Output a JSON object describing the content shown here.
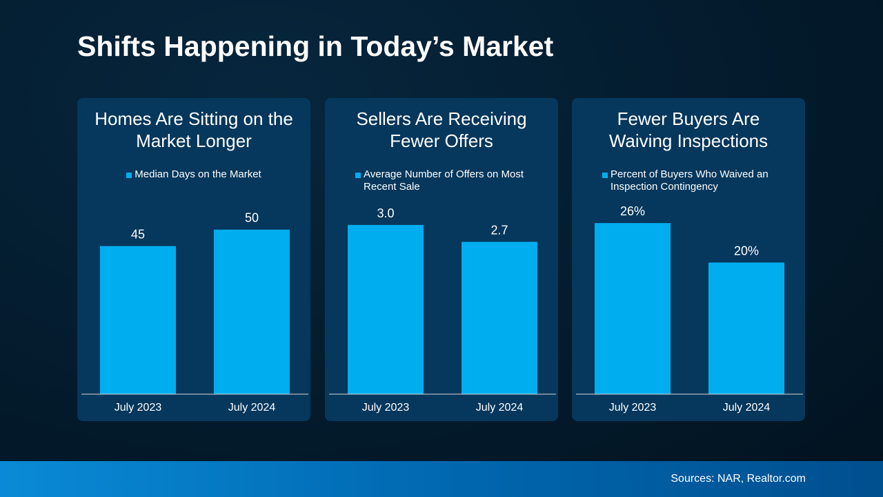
{
  "title": "Shifts Happening in Today’s Market",
  "source": "Sources: NAR, Realtor.com",
  "chart_data": [
    {
      "type": "bar",
      "title": "Homes Are Sitting on the Market Longer",
      "categories": [
        "July 2023",
        "July 2024"
      ],
      "series": [
        {
          "name": "Median Days on the Market",
          "color": "#00aeef",
          "values": [
            45,
            50
          ]
        }
      ],
      "ylim": [
        0,
        60
      ]
    },
    {
      "type": "bar",
      "title": "Sellers Are Receiving Fewer Offers",
      "categories": [
        "July 2023",
        "July 2024"
      ],
      "series": [
        {
          "name": "Average Number of Offers on Most Recent Sale",
          "color": "#00aeef",
          "values": [
            3.0,
            2.7
          ],
          "value_labels": [
            "3.0",
            "2.7"
          ]
        }
      ],
      "ylim": [
        0,
        3.5
      ]
    },
    {
      "type": "bar",
      "title": "Fewer Buyers Are Waiving Inspections",
      "categories": [
        "July 2023",
        "July 2024"
      ],
      "series": [
        {
          "name": "Percent of Buyers Who Waived an Inspection Contingency",
          "color": "#00aeef",
          "values": [
            26,
            20
          ],
          "value_labels": [
            "26%",
            "20%"
          ]
        }
      ],
      "ylim": [
        0,
        30
      ]
    }
  ]
}
